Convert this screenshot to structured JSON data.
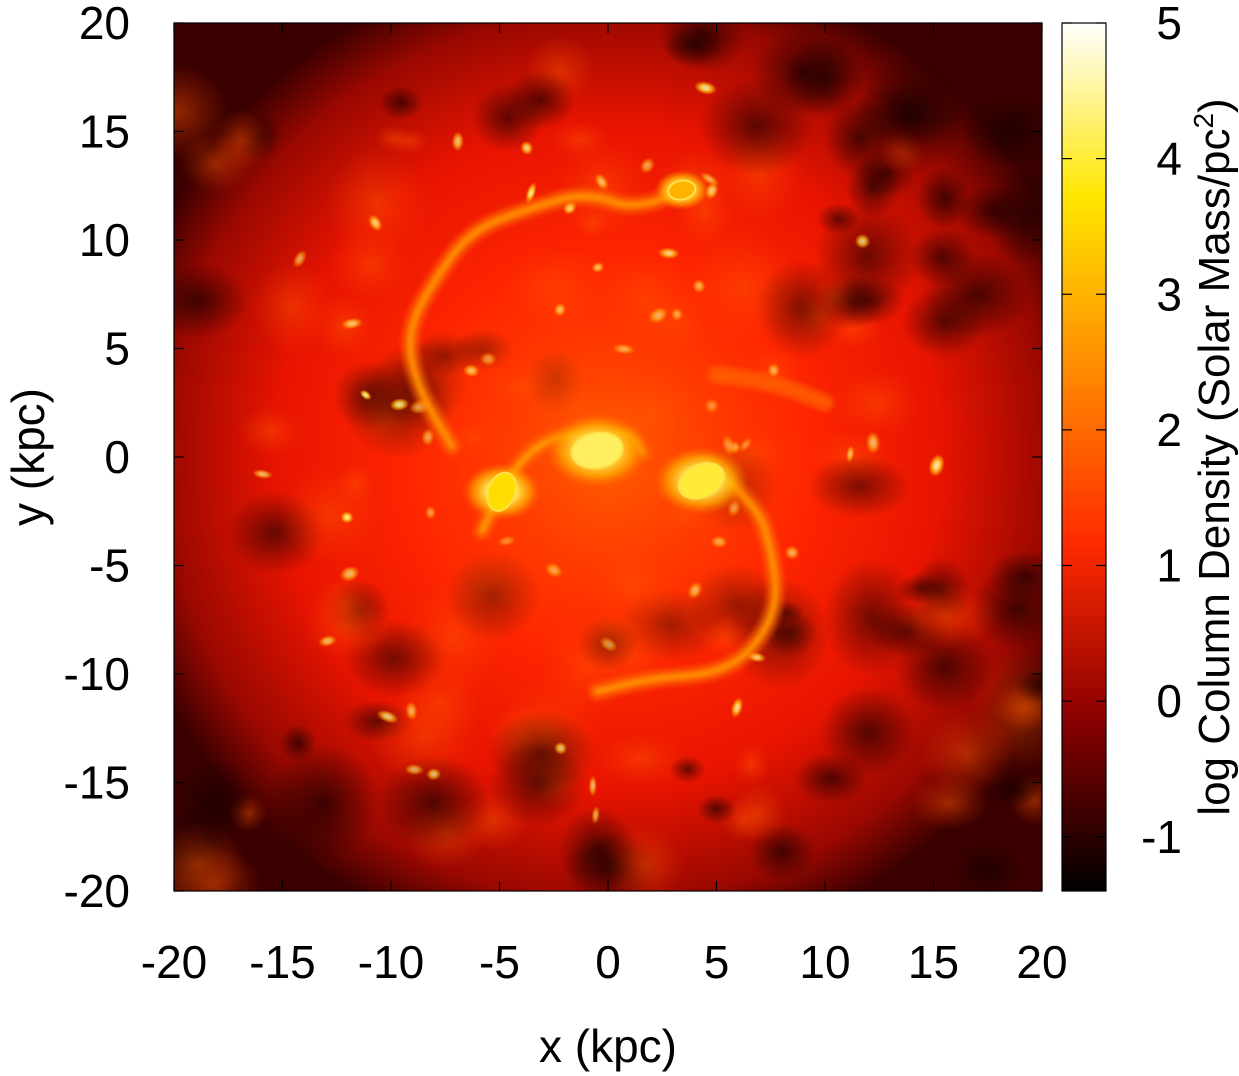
{
  "chart_data": {
    "type": "heatmap",
    "title": "",
    "xlabel": "x (kpc)",
    "ylabel": "y (kpc)",
    "xlim": [
      -20,
      20
    ],
    "ylim": [
      -20,
      20
    ],
    "xticks": [
      "-20",
      "-15",
      "-10",
      "-5",
      "0",
      "5",
      "10",
      "15",
      "20"
    ],
    "yticks": [
      "-20",
      "-15",
      "-10",
      "-5",
      "0",
      "5",
      "10",
      "15",
      "20"
    ],
    "colorbar": {
      "label_main": "log Column Density (Solar Mass/pc",
      "label_sup": "2",
      "label_close": ")",
      "range": [
        -1.4,
        5
      ],
      "ticks": [
        "-1",
        "0",
        "1",
        "2",
        "3",
        "4",
        "5"
      ],
      "colors": [
        "#000000",
        "#8b0000",
        "#ff2a00",
        "#ff8a00",
        "#ffe600",
        "#ffffff"
      ]
    },
    "features": {
      "bright_knots": [
        {
          "x": -0.5,
          "y": 0.3,
          "value": 4.2
        },
        {
          "x": 4.3,
          "y": -1.1,
          "value": 4.0
        },
        {
          "x": -4.9,
          "y": -1.6,
          "value": 3.6
        },
        {
          "x": 3.4,
          "y": 12.3,
          "value": 3.0
        }
      ],
      "spiral_arms": [
        {
          "points": [
            [
              3.4,
              12.3
            ],
            [
              1.5,
              11.3
            ],
            [
              -1,
              12.2
            ],
            [
              -3.5,
              11.5
            ],
            [
              -6.2,
              10.5
            ],
            [
              -7.8,
              8.5
            ],
            [
              -9.3,
              5.8
            ],
            [
              -8.8,
              3.2
            ],
            [
              -7.2,
              0.5
            ]
          ],
          "value": 2.5
        },
        {
          "points": [
            [
              -5.8,
              -3.4
            ],
            [
              -4.5,
              -0.5
            ],
            [
              -2.4,
              1.1
            ],
            [
              -0.5,
              0.8
            ],
            [
              1,
              1.2
            ],
            [
              1.6,
              0.2
            ]
          ],
          "value": 2.6
        },
        {
          "points": [
            [
              4.5,
              -0.3
            ],
            [
              6.8,
              -2
            ],
            [
              7.6,
              -4.5
            ],
            [
              7.8,
              -7
            ],
            [
              6.5,
              -9.1
            ],
            [
              4.8,
              -10
            ],
            [
              2,
              -10.2
            ],
            [
              -0.5,
              -10.8
            ]
          ],
          "value": 2.5
        },
        {
          "points": [
            [
              5,
              3.8
            ],
            [
              7.5,
              3.5
            ],
            [
              10,
              2.5
            ]
          ],
          "value": 1.8
        }
      ]
    }
  }
}
